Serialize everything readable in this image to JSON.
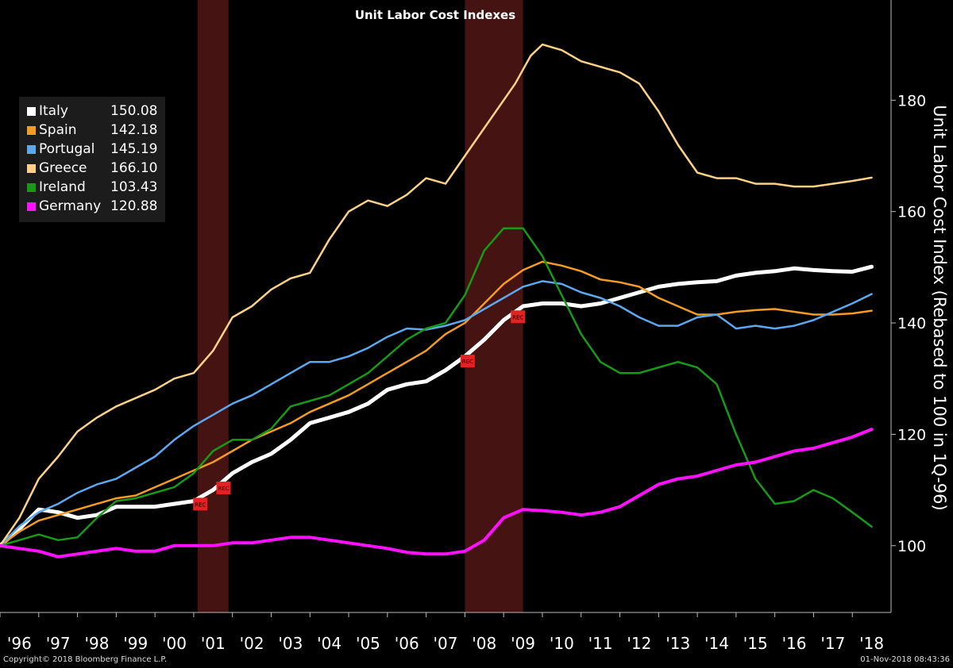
{
  "chart_data": {
    "type": "line",
    "title": "Unit Labor Cost Indexes",
    "ylabel": "Unit Labor Cost Index (Rebased to 100 in 1Q-96)",
    "ylim": [
      88,
      198
    ],
    "yticks": [
      100,
      120,
      140,
      160,
      180
    ],
    "xlim": [
      1996.0,
      2019.0
    ],
    "xtick_labels": [
      "'96",
      "'97",
      "'98",
      "'99",
      "'00",
      "'01",
      "'02",
      "'03",
      "'04",
      "'05",
      "'06",
      "'07",
      "'08",
      "'09",
      "'10",
      "'11",
      "'12",
      "'13",
      "'14",
      "'15",
      "'16",
      "'17",
      "'18"
    ],
    "legend_placement": "top-left",
    "recessions": [
      {
        "start": 2001.1,
        "end": 2001.9,
        "label": "REC"
      },
      {
        "start": 2008.0,
        "end": 2009.5,
        "label": "REC"
      }
    ],
    "series": [
      {
        "name": "Italy",
        "last": "150.08",
        "color": "#ffffff",
        "width": 5,
        "x": [
          1996.0,
          1996.5,
          1997.0,
          1997.5,
          1998.0,
          1998.5,
          1999.0,
          1999.5,
          2000.0,
          2000.5,
          2001.0,
          2001.5,
          2002.0,
          2002.5,
          2003.0,
          2003.5,
          2004.0,
          2004.5,
          2005.0,
          2005.5,
          2006.0,
          2006.5,
          2007.0,
          2007.5,
          2008.0,
          2008.5,
          2009.0,
          2009.5,
          2010.0,
          2010.5,
          2011.0,
          2011.5,
          2012.0,
          2012.5,
          2013.0,
          2013.5,
          2014.0,
          2014.5,
          2015.0,
          2015.5,
          2016.0,
          2016.5,
          2017.0,
          2017.5,
          2018.0,
          2018.5
        ],
        "y": [
          100,
          103,
          106.5,
          106,
          105,
          105.5,
          107,
          107,
          107,
          107.5,
          108,
          110,
          113,
          115,
          116.5,
          119,
          122,
          123,
          124,
          125.5,
          128,
          129,
          129.5,
          131.5,
          134,
          137,
          140.5,
          143,
          143.5,
          143.5,
          143,
          143.5,
          144.5,
          145.5,
          146.5,
          147,
          147.3,
          147.5,
          148.5,
          149,
          149.3,
          149.8,
          149.5,
          149.3,
          149.2,
          150.1
        ]
      },
      {
        "name": "Spain",
        "last": "142.18",
        "color": "#f39c21",
        "width": 2.5,
        "x": [
          1996.0,
          1996.5,
          1997.0,
          1997.5,
          1998.0,
          1998.5,
          1999.0,
          1999.5,
          2000.0,
          2000.5,
          2001.0,
          2001.5,
          2002.0,
          2002.5,
          2003.0,
          2003.5,
          2004.0,
          2004.5,
          2005.0,
          2005.5,
          2006.0,
          2006.5,
          2007.0,
          2007.5,
          2008.0,
          2008.5,
          2009.0,
          2009.5,
          2010.0,
          2010.5,
          2011.0,
          2011.5,
          2012.0,
          2012.5,
          2013.0,
          2013.5,
          2014.0,
          2014.5,
          2015.0,
          2015.5,
          2016.0,
          2016.5,
          2017.0,
          2017.5,
          2018.0,
          2018.5
        ],
        "y": [
          100,
          102.5,
          104.5,
          105.5,
          106.5,
          107.5,
          108.5,
          109,
          110.5,
          112,
          113.5,
          115,
          117,
          119,
          120.5,
          122,
          124,
          125.5,
          127,
          129,
          131,
          133,
          135,
          138,
          140,
          143.5,
          147,
          149.5,
          151,
          150.3,
          149.3,
          147.8,
          147.3,
          146.5,
          144.5,
          143,
          141.5,
          141.5,
          142,
          142.3,
          142.5,
          142,
          141.5,
          141.5,
          141.7,
          142.2
        ]
      },
      {
        "name": "Portugal",
        "last": "145.19",
        "color": "#5ca8f0",
        "width": 2.5,
        "x": [
          1996.0,
          1996.5,
          1997.0,
          1997.5,
          1998.0,
          1998.5,
          1999.0,
          1999.5,
          2000.0,
          2000.5,
          2001.0,
          2001.5,
          2002.0,
          2002.5,
          2003.0,
          2003.5,
          2004.0,
          2004.5,
          2005.0,
          2005.5,
          2006.0,
          2006.5,
          2007.0,
          2007.5,
          2008.0,
          2008.5,
          2009.0,
          2009.5,
          2010.0,
          2010.5,
          2011.0,
          2011.5,
          2012.0,
          2012.5,
          2013.0,
          2013.5,
          2014.0,
          2014.5,
          2015.0,
          2015.5,
          2016.0,
          2016.5,
          2017.0,
          2017.5,
          2018.0,
          2018.5
        ],
        "y": [
          100,
          103.5,
          106,
          107.5,
          109.5,
          111,
          112,
          114,
          116,
          119,
          121.5,
          123.5,
          125.5,
          127,
          129,
          131,
          133,
          133,
          134,
          135.5,
          137.5,
          139,
          138.8,
          139.5,
          140.5,
          142.5,
          144.5,
          146.5,
          147.5,
          147,
          145.5,
          144.5,
          143,
          141,
          139.5,
          139.5,
          141,
          141.5,
          139,
          139.5,
          139,
          139.5,
          140.5,
          142,
          143.5,
          145.2
        ]
      },
      {
        "name": "Greece",
        "last": "166.10",
        "color": "#fcd185",
        "width": 2.5,
        "x": [
          1996.0,
          1996.5,
          1997.0,
          1997.5,
          1998.0,
          1998.5,
          1999.0,
          1999.5,
          2000.0,
          2000.5,
          2001.0,
          2001.5,
          2002.0,
          2002.5,
          2003.0,
          2003.5,
          2004.0,
          2004.5,
          2005.0,
          2005.5,
          2006.0,
          2006.5,
          2007.0,
          2007.5,
          2008.0,
          2008.5,
          2009.0,
          2009.3,
          2009.7,
          2010.0,
          2010.5,
          2011.0,
          2011.5,
          2012.0,
          2012.5,
          2013.0,
          2013.5,
          2014.0,
          2014.5,
          2015.0,
          2015.5,
          2016.0,
          2016.5,
          2017.0,
          2017.5,
          2018.0,
          2018.5
        ],
        "y": [
          100,
          105,
          112,
          116,
          120.5,
          123,
          125,
          126.5,
          128,
          130,
          131,
          135,
          141,
          143,
          146,
          148,
          149,
          155,
          160,
          162,
          161,
          163,
          166,
          165,
          170,
          175,
          180,
          183,
          188,
          190,
          189,
          187,
          186,
          185,
          183,
          178,
          172,
          167,
          166,
          166,
          165,
          165,
          164.5,
          164.5,
          165,
          165.5,
          166.1
        ]
      },
      {
        "name": "Ireland",
        "last": "103.43",
        "color": "#159b15",
        "width": 2.5,
        "x": [
          1996.0,
          1996.5,
          1997.0,
          1997.5,
          1998.0,
          1998.5,
          1999.0,
          1999.5,
          2000.0,
          2000.5,
          2001.0,
          2001.5,
          2002.0,
          2002.5,
          2003.0,
          2003.5,
          2004.0,
          2004.5,
          2005.0,
          2005.5,
          2006.0,
          2006.5,
          2007.0,
          2007.5,
          2008.0,
          2008.5,
          2009.0,
          2009.5,
          2010.0,
          2010.5,
          2011.0,
          2011.5,
          2012.0,
          2012.5,
          2013.0,
          2013.5,
          2014.0,
          2014.5,
          2015.0,
          2015.5,
          2016.0,
          2016.5,
          2017.0,
          2017.5,
          2018.0,
          2018.5
        ],
        "y": [
          100,
          101,
          102,
          101,
          101.5,
          105,
          108,
          108.5,
          109.5,
          110.5,
          113,
          117,
          119,
          119,
          121,
          125,
          126,
          127,
          129,
          131,
          134,
          137,
          139,
          140,
          145,
          153,
          157,
          157,
          152,
          145,
          138,
          133,
          131,
          131,
          132,
          133,
          132,
          129,
          120,
          112,
          107.5,
          108,
          110,
          108.5,
          106,
          103.4
        ]
      },
      {
        "name": "Germany",
        "last": "120.88",
        "color": "#ff10ff",
        "width": 4,
        "x": [
          1996.0,
          1996.5,
          1997.0,
          1997.5,
          1998.0,
          1998.5,
          1999.0,
          1999.5,
          2000.0,
          2000.5,
          2001.0,
          2001.5,
          2002.0,
          2002.5,
          2003.0,
          2003.5,
          2004.0,
          2004.5,
          2005.0,
          2005.5,
          2006.0,
          2006.5,
          2007.0,
          2007.5,
          2008.0,
          2008.5,
          2009.0,
          2009.5,
          2010.0,
          2010.5,
          2011.0,
          2011.5,
          2012.0,
          2012.5,
          2013.0,
          2013.5,
          2014.0,
          2014.5,
          2015.0,
          2015.5,
          2016.0,
          2016.5,
          2017.0,
          2017.5,
          2018.0,
          2018.5
        ],
        "y": [
          100,
          99.5,
          99,
          98,
          98.5,
          99,
          99.5,
          99,
          99,
          100,
          100,
          100,
          100.5,
          100.5,
          101,
          101.5,
          101.5,
          101,
          100.5,
          100,
          99.5,
          98.8,
          98.5,
          98.5,
          99,
          101,
          105,
          106.5,
          106.3,
          106,
          105.5,
          106,
          107,
          109,
          111,
          112,
          112.5,
          113.5,
          114.5,
          115,
          116,
          117,
          117.5,
          118.5,
          119.5,
          120.9
        ]
      }
    ]
  },
  "footer": {
    "copyright": "Copyright© 2018 Bloomberg Finance L.P.",
    "timestamp": "01-Nov-2018 08:43:36"
  }
}
